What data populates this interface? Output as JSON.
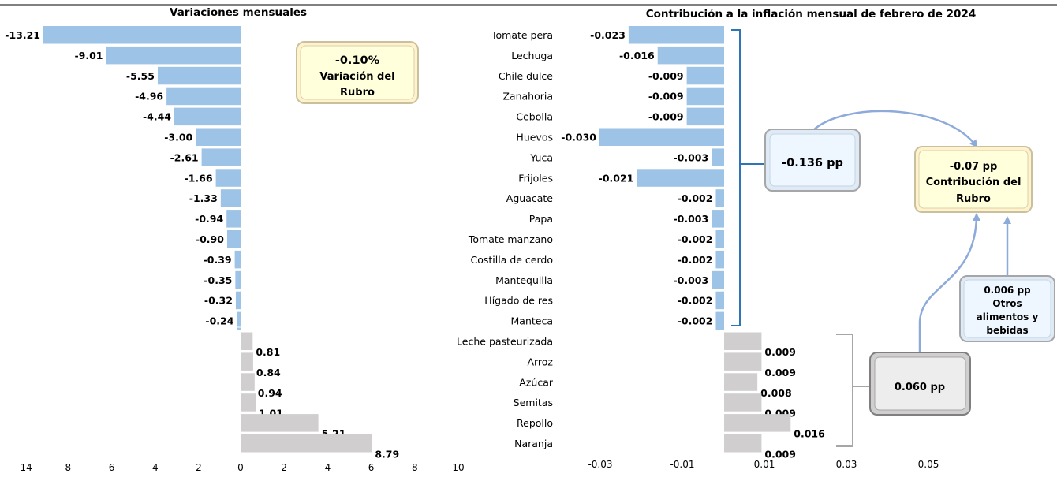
{
  "chart_data": [
    {
      "type": "bar",
      "orientation": "horizontal",
      "title": "Variaciones mensuales",
      "categories": [
        "Tomate pera",
        "Lechuga",
        "Chile dulce",
        "Zanahoria",
        "Cebolla",
        "Huevos",
        "Yuca",
        "Frijoles",
        "Aguacate",
        "Papa",
        "Tomate manzano",
        "Costilla de cerdo",
        "Mantequilla",
        "Hígado de res",
        "Manteca",
        "Leche pasteurizada",
        "Arroz",
        "Azúcar",
        "Semitas",
        "Repollo",
        "Naranja"
      ],
      "values": [
        -13.21,
        -9.01,
        -5.55,
        -4.96,
        -4.44,
        -3.0,
        -2.61,
        -1.66,
        -1.33,
        -0.94,
        -0.9,
        -0.39,
        -0.35,
        -0.32,
        -0.24,
        0.81,
        0.84,
        0.94,
        1.01,
        5.21,
        8.79
      ],
      "labels": [
        "-13.21",
        "-9.01",
        "-5.55",
        "-4.96",
        "-4.44",
        "-3.00",
        "-2.61",
        "-1.66",
        "-1.33",
        "-0.94",
        "-0.90",
        "-0.39",
        "-0.35",
        "-0.32",
        "-0.24",
        "0.81",
        "0.84",
        "0.94",
        "1.01",
        "5.21",
        "8.79"
      ],
      "xticks": [
        "-14",
        "-8",
        "-6",
        "-4",
        "-2",
        "0",
        "2",
        "4",
        "6",
        "8",
        "10"
      ],
      "colors": {
        "negative": "#9dc3e6",
        "positive": "#d0cece"
      }
    },
    {
      "type": "bar",
      "orientation": "horizontal",
      "title": "Contribución a la inflación mensual de febrero de 2024",
      "categories": [
        "Tomate pera",
        "Lechuga",
        "Chile dulce",
        "Zanahoria",
        "Cebolla",
        "Huevos",
        "Yuca",
        "Frijoles",
        "Aguacate",
        "Papa",
        "Tomate manzano",
        "Costilla de cerdo",
        "Mantequilla",
        "Hígado de res",
        "Manteca",
        "Leche pasteurizada",
        "Arroz",
        "Azúcar",
        "Semitas",
        "Repollo",
        "Naranja"
      ],
      "values": [
        -0.023,
        -0.016,
        -0.009,
        -0.009,
        -0.009,
        -0.03,
        -0.003,
        -0.021,
        -0.002,
        -0.003,
        -0.002,
        -0.002,
        -0.003,
        -0.002,
        -0.002,
        0.009,
        0.009,
        0.008,
        0.009,
        0.016,
        0.009
      ],
      "labels": [
        "-0.023",
        "-0.016",
        "-0.009",
        "-0.009",
        "-0.009",
        "-0.030",
        "-0.003",
        "-0.021",
        "-0.002",
        "-0.003",
        "-0.002",
        "-0.002",
        "-0.003",
        "-0.002",
        "-0.002",
        "0.009",
        "0.009",
        "0.008",
        "0.009",
        "0.016",
        "0.009"
      ],
      "xticks": [
        "-0.03",
        "-0.01",
        "0.01",
        "0.03",
        "0.05"
      ],
      "colors": {
        "negative": "#9dc3e6",
        "positive": "#d0cece"
      }
    }
  ],
  "annotations": {
    "rubro_variation": [
      "-0.10%",
      "Variación del",
      "Rubro"
    ],
    "negative_sum": "-0.136 pp",
    "positive_sum": "0.060 pp",
    "others": [
      "0.006 pp",
      "Otros",
      "alimentos y",
      "bebidas"
    ],
    "rubro_contribution": [
      "-0.07 pp",
      "Contribución del",
      "Rubro"
    ]
  }
}
